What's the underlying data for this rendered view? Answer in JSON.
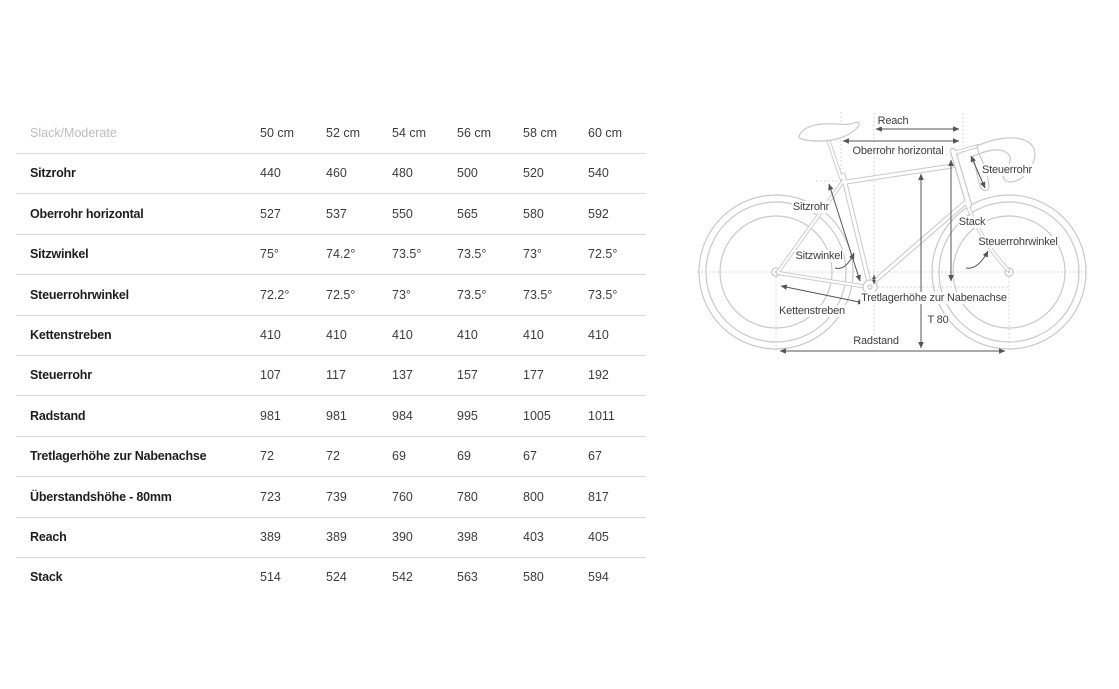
{
  "table": {
    "header": {
      "label": "Slack/Moderate",
      "sizes": [
        "50 cm",
        "52 cm",
        "54 cm",
        "56 cm",
        "58 cm",
        "60 cm"
      ]
    },
    "rows": [
      {
        "label": "Sitzrohr",
        "values": [
          "440",
          "460",
          "480",
          "500",
          "520",
          "540"
        ]
      },
      {
        "label": "Oberrohr horizontal",
        "values": [
          "527",
          "537",
          "550",
          "565",
          "580",
          "592"
        ]
      },
      {
        "label": "Sitzwinkel",
        "values": [
          "75°",
          "74.2°",
          "73.5°",
          "73.5°",
          "73°",
          "72.5°"
        ]
      },
      {
        "label": "Steuerrohrwinkel",
        "values": [
          "72.2°",
          "72.5°",
          "73°",
          "73.5°",
          "73.5°",
          "73.5°"
        ]
      },
      {
        "label": "Kettenstreben",
        "values": [
          "410",
          "410",
          "410",
          "410",
          "410",
          "410"
        ]
      },
      {
        "label": "Steuerrohr",
        "values": [
          "107",
          "117",
          "137",
          "157",
          "177",
          "192"
        ]
      },
      {
        "label": "Radstand",
        "values": [
          "981",
          "981",
          "984",
          "995",
          "1005",
          "1011"
        ]
      },
      {
        "label": "Tretlagerhöhe zur Nabenachse",
        "values": [
          "72",
          "72",
          "69",
          "69",
          "67",
          "67"
        ]
      },
      {
        "label": "Überstandshöhe - 80mm",
        "values": [
          "723",
          "739",
          "760",
          "780",
          "800",
          "817"
        ]
      },
      {
        "label": "Reach",
        "values": [
          "389",
          "389",
          "390",
          "398",
          "403",
          "405"
        ]
      },
      {
        "label": "Stack",
        "values": [
          "514",
          "524",
          "542",
          "563",
          "580",
          "594"
        ]
      }
    ]
  },
  "diagram": {
    "labels": {
      "reach": "Reach",
      "oberrohr_horizontal": "Oberrohr horizontal",
      "steuerrohr": "Steuerrohr",
      "sitzrohr": "Sitzrohr",
      "stack": "Stack",
      "steuerrohrwinkel": "Steuerrohrwinkel",
      "sitzwinkel": "Sitzwinkel",
      "tretlagerhoehe": "Tretlagerhöhe zur Nabenachse",
      "kettenstreben": "Kettenstreben",
      "t80": "T 80",
      "radstand": "Radstand"
    }
  },
  "colors": {
    "bike_outline": "#c8c8c8",
    "guide_dotted": "#c9c9c9",
    "dimension": "#555555",
    "label_text": "#3e3e3e",
    "table_divider": "#dadada",
    "table_label": "#1e1e1e",
    "table_value": "#3c3c3c",
    "table_header_muted": "#bcbcbc"
  }
}
